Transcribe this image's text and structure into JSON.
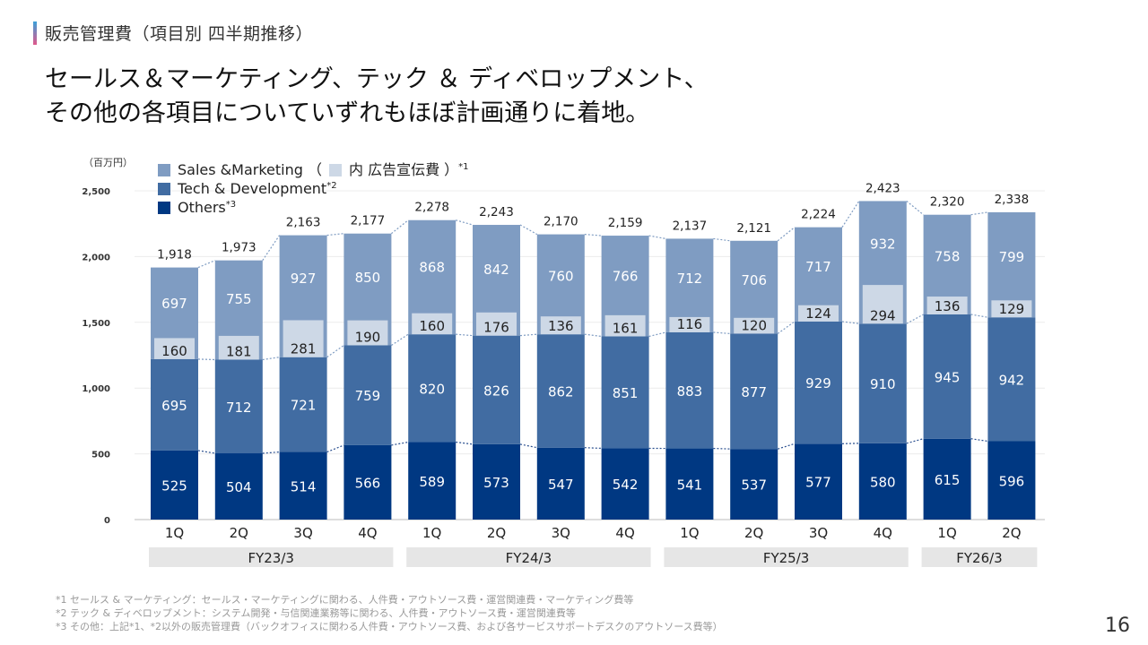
{
  "section_title": "販売管理費（項目別 四半期推移）",
  "headline": [
    "セールス＆マーケティング、テック ＆ ディベロップメント、",
    "その他の各項目についていずれもほぼ計画通りに着地。"
  ],
  "unit_label": "（百万円）",
  "legend": {
    "sales_marketing": "Sales &Marketing （",
    "ad_label": "内 広告宣伝費 ）",
    "ad_note": "*1",
    "tech_dev": "Tech & Development",
    "tech_note": "*2",
    "others": "Others",
    "others_note": "*3"
  },
  "colors": {
    "sales_marketing": "#7f9cc2",
    "advertising": "#cdd8e6",
    "tech_dev": "#416ca2",
    "others": "#003882",
    "fy_band": "#e6e6e6"
  },
  "chart_data": {
    "type": "bar",
    "stacked": true,
    "title": "販売管理費（項目別 四半期推移）",
    "ylabel": "（百万円）",
    "ylim": [
      0,
      2500
    ],
    "yticks": [
      0,
      500,
      1000,
      1500,
      2000,
      2500
    ],
    "ytick_labels": [
      "0",
      "500",
      "1,000",
      "1,500",
      "2,000",
      "2,500"
    ],
    "grid": true,
    "legend_position": "top-left",
    "categories": [
      "1Q",
      "2Q",
      "3Q",
      "4Q",
      "1Q",
      "2Q",
      "3Q",
      "4Q",
      "1Q",
      "2Q",
      "3Q",
      "4Q",
      "1Q",
      "2Q"
    ],
    "groups": [
      {
        "label": "FY23/3",
        "count": 4
      },
      {
        "label": "FY24/3",
        "count": 4
      },
      {
        "label": "FY25/3",
        "count": 4
      },
      {
        "label": "FY26/3",
        "count": 2
      }
    ],
    "series": [
      {
        "name": "Others",
        "values": [
          525,
          504,
          514,
          566,
          589,
          573,
          547,
          542,
          541,
          537,
          577,
          580,
          615,
          596
        ]
      },
      {
        "name": "Tech & Development",
        "values": [
          695,
          712,
          721,
          759,
          820,
          826,
          862,
          851,
          883,
          877,
          929,
          910,
          945,
          942
        ]
      },
      {
        "name": "Sales &Marketing",
        "values": [
          697,
          755,
          927,
          850,
          868,
          842,
          760,
          766,
          712,
          706,
          717,
          932,
          758,
          799
        ]
      },
      {
        "name": "内 広告宣伝費 (included in Sales &Marketing)",
        "values": [
          160,
          181,
          281,
          190,
          160,
          176,
          136,
          161,
          116,
          120,
          124,
          294,
          136,
          129
        ]
      }
    ],
    "totals": [
      1918,
      1973,
      2163,
      2177,
      2278,
      2243,
      2170,
      2159,
      2137,
      2121,
      2224,
      2423,
      2320,
      2338
    ],
    "total_labels": [
      "1,918",
      "1,973",
      "2,163",
      "2,177",
      "2,278",
      "2,243",
      "2,170",
      "2,159",
      "2,137",
      "2,121",
      "2,224",
      "2,423",
      "2,320",
      "2,338"
    ]
  },
  "footnotes": [
    "*1 セールス & マーケティング：セールス・マーケティングに関わる、人件費・アウトソース費・運営関連費・マーケティング費等",
    "*2 テック & ディベロップメント：システム開発・与信関連業務等に関わる、人件費・アウトソース費・運営関連費等",
    "*3 その他：上記*1、*2以外の販売管理費（バックオフィスに関わる人件費・アウトソース費、および各サービスサポートデスクのアウトソース費等）"
  ],
  "page_number": "16"
}
